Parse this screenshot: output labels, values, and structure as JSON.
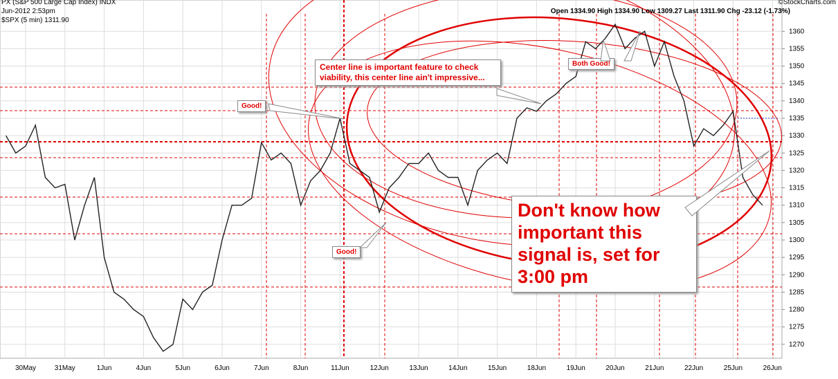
{
  "header": {
    "title": "PX (S&P 500 Large Cap Index) INDX",
    "date": "Jun-2012 2:53pm",
    "legend": "$SPX (5 min) 1311.90",
    "source": "©StockCharts.com",
    "quote": "Open 1334.90  High 1334.90  Low 1309.27  Last 1311.90  Chg -23.12 (-1.73%)"
  },
  "annotations": {
    "good_1": "Good!",
    "center": "Center line is important feature to check viability, this center line ain't impressive...",
    "both_good": "Both Good!",
    "good_2": "Good!",
    "signal": "Don't know how important this signal is, set for 3:00 pm"
  },
  "chart_data": {
    "type": "line",
    "grid": true,
    "color": "#222222",
    "categories": [
      null,
      null,
      "30May",
      null,
      null,
      null,
      "31May",
      null,
      null,
      null,
      "1Jun",
      null,
      null,
      null,
      "4Jun",
      null,
      null,
      null,
      "5Jun",
      null,
      null,
      null,
      "6Jun",
      null,
      null,
      null,
      "7Jun",
      null,
      null,
      null,
      "8Jun",
      null,
      null,
      null,
      "11Jun",
      null,
      null,
      null,
      "12Jun",
      null,
      null,
      null,
      "13Jun",
      null,
      null,
      null,
      "14Jun",
      null,
      null,
      null,
      "15Jun",
      null,
      null,
      null,
      "18Jun",
      null,
      null,
      null,
      "19Jun",
      null,
      null,
      null,
      "20Jun",
      null,
      null,
      null,
      "21Jun",
      null,
      null,
      null,
      "22Jun",
      null,
      null,
      null,
      "25Jun",
      null,
      null,
      null,
      "26Jun"
    ],
    "values": [
      1330,
      1325,
      1327,
      1333,
      1318,
      1315,
      1316,
      1300,
      1310,
      1318,
      1295,
      1285,
      1283,
      1280,
      1278,
      1272,
      1268,
      1270,
      1283,
      1280,
      1285,
      1287,
      1300,
      1310,
      1310,
      1312,
      1328,
      1323,
      1325,
      1322,
      1310,
      1317,
      1320,
      1325,
      1335,
      1322,
      1320,
      1318,
      1308,
      1315,
      1318,
      1322,
      1322,
      1325,
      1320,
      1318,
      1318,
      1310,
      1320,
      1323,
      1325,
      1322,
      1335,
      1338,
      1337,
      1340,
      1342,
      1345,
      1347,
      1357,
      1355,
      1358,
      1362,
      1355,
      1358,
      1360,
      1350,
      1357,
      1347,
      1340,
      1327,
      1332,
      1330,
      1333,
      1337,
      1318,
      1313,
      1310,
      null
    ],
    "ylim": [
      1266,
      1369
    ],
    "yticks": [
      1270,
      1275,
      1280,
      1285,
      1290,
      1295,
      1300,
      1305,
      1310,
      1315,
      1320,
      1325,
      1330,
      1335,
      1340,
      1345,
      1350,
      1355,
      1360
    ]
  }
}
